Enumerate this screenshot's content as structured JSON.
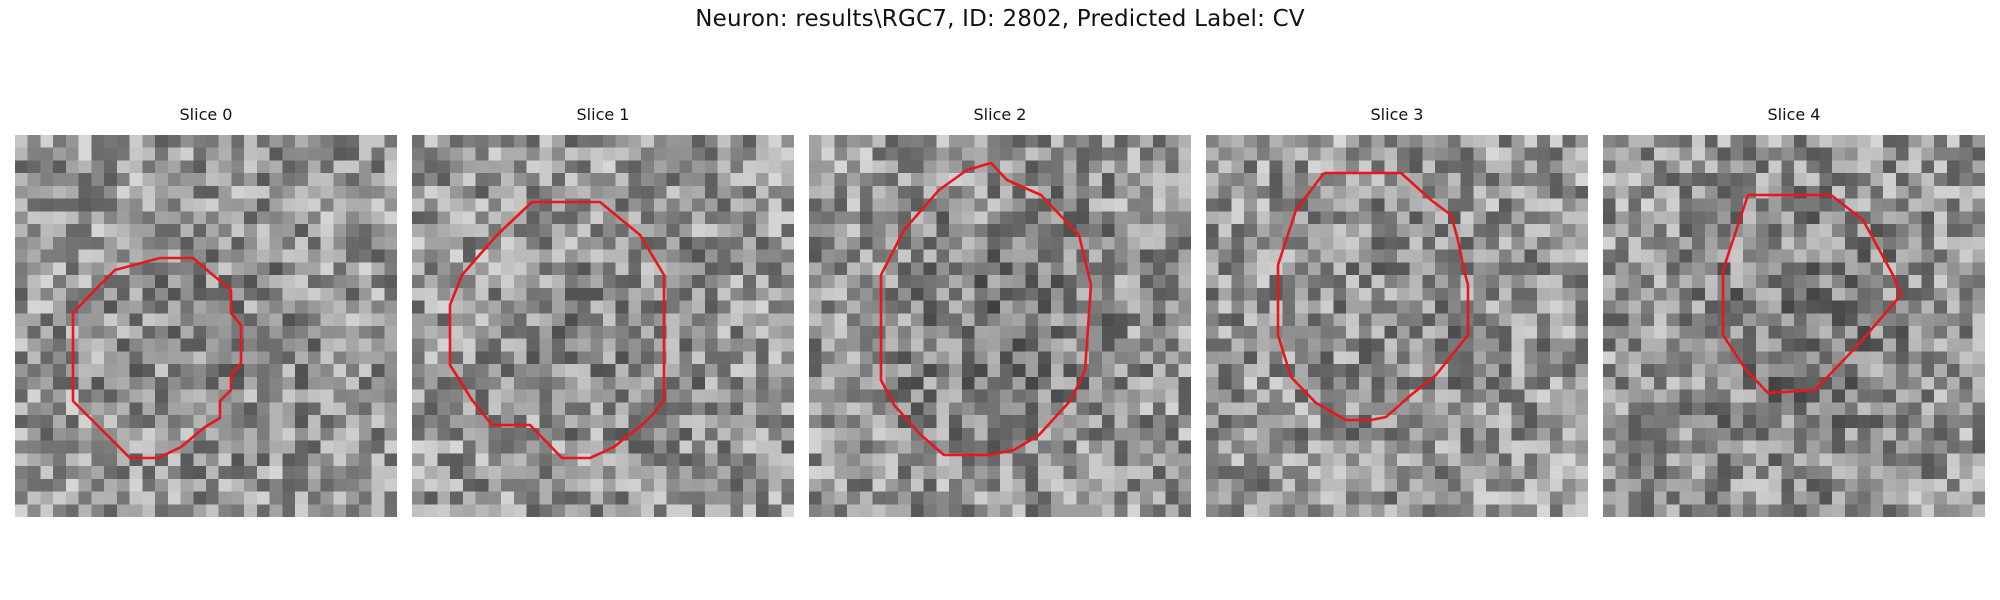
{
  "figure": {
    "title": "Neuron: results\\RGC7, ID: 2802, Predicted Label: CV",
    "contour_color": "#e8171b"
  },
  "panels": [
    {
      "label": "Slice 0"
    },
    {
      "label": "Slice 1"
    },
    {
      "label": "Slice 2"
    },
    {
      "label": "Slice 3"
    },
    {
      "label": "Slice 4"
    }
  ]
}
